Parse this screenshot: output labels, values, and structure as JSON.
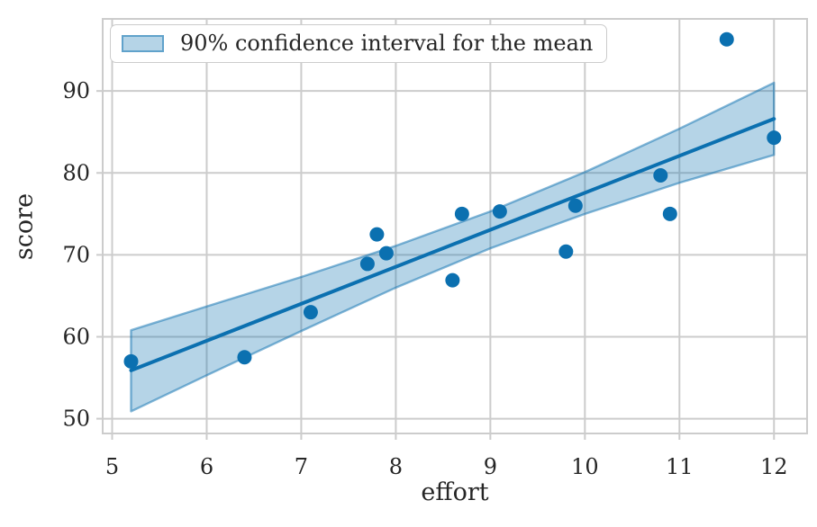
{
  "figure": {
    "background": "#ffffff"
  },
  "chart_data": {
    "type": "scatter",
    "title": "",
    "xlabel": "effort",
    "ylabel": "score",
    "legend_label": "90% confidence interval for the mean",
    "legend_position": "upper left",
    "grid": true,
    "xlim": [
      4.9,
      12.35
    ],
    "ylim": [
      48.2,
      98.8
    ],
    "xticks": [
      5,
      6,
      7,
      8,
      9,
      10,
      11,
      12
    ],
    "yticks": [
      50,
      60,
      70,
      80,
      90
    ],
    "points": [
      [
        5.2,
        57.0
      ],
      [
        6.4,
        57.5
      ],
      [
        7.1,
        63.0
      ],
      [
        7.7,
        68.9
      ],
      [
        7.8,
        72.5
      ],
      [
        7.9,
        70.2
      ],
      [
        8.6,
        66.9
      ],
      [
        8.7,
        75.0
      ],
      [
        9.1,
        75.3
      ],
      [
        9.8,
        70.4
      ],
      [
        9.9,
        76.0
      ],
      [
        10.8,
        79.7
      ],
      [
        10.9,
        75.0
      ],
      [
        11.5,
        96.3
      ],
      [
        12.0,
        84.3
      ]
    ],
    "regression_line": {
      "x1": 5.2,
      "y1": 55.9,
      "x2": 12.0,
      "y2": 86.6
    },
    "ci_band": {
      "x": [
        5.2,
        6.0,
        7.0,
        8.0,
        9.0,
        10.0,
        11.0,
        12.0
      ],
      "lo": [
        50.9,
        55.3,
        60.7,
        66.0,
        70.8,
        75.0,
        78.8,
        82.2
      ],
      "hi": [
        60.8,
        63.7,
        67.3,
        71.1,
        75.3,
        80.1,
        85.4,
        91.0
      ]
    },
    "colors": {
      "point": "#0b70b0",
      "line": "#0b70b0",
      "band_fill": "rgba(11,112,176,0.30)",
      "band_edge": "rgba(11,112,176,0.50)",
      "grid": "#cccccc",
      "spine": "#cccccc",
      "tick": "#cccccc",
      "text": "#262626"
    }
  }
}
